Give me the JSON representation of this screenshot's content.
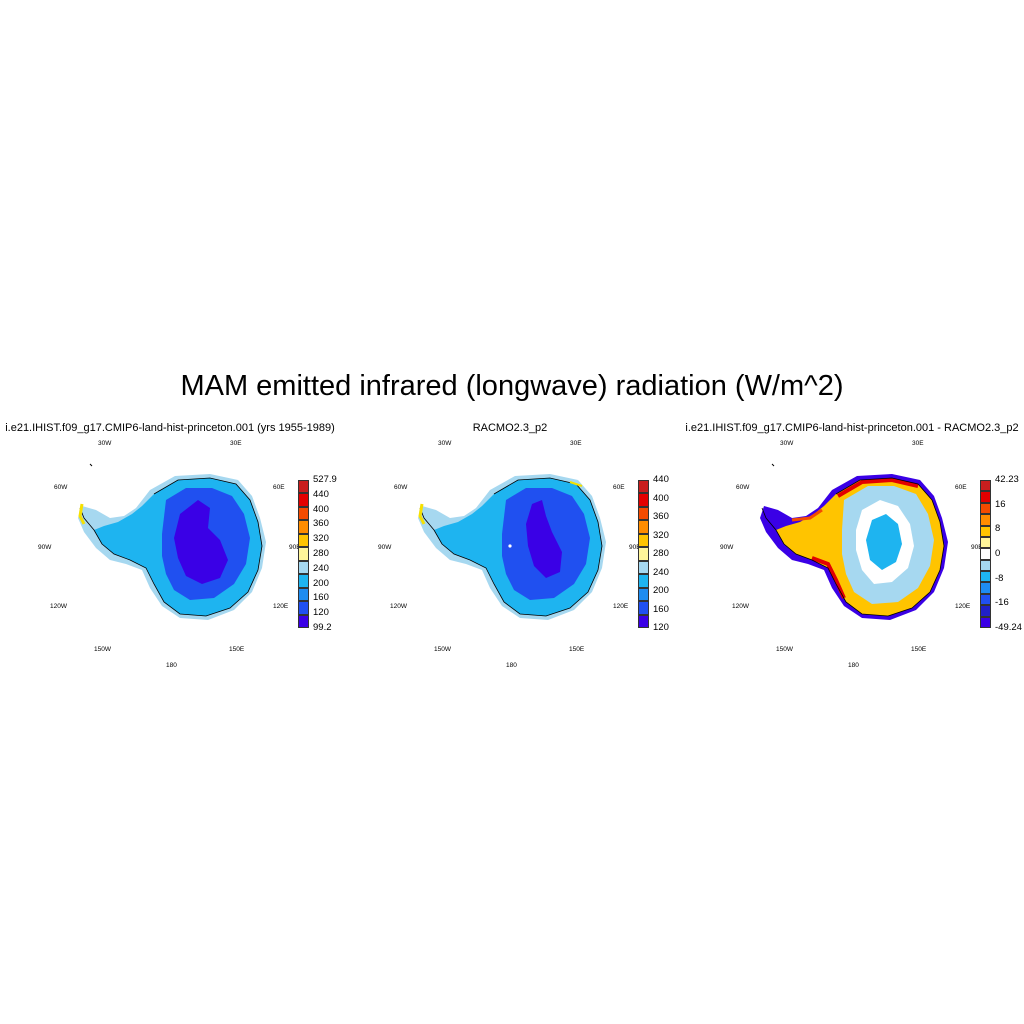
{
  "title": "MAM emitted infrared (longwave) radiation (W/m^2)",
  "panels": [
    {
      "title": "i.e21.IHIST.f09_g17.CMIP6-land-hist-princeton.001 (yrs 1955-1989)",
      "lon_labels": [
        "30W",
        "30E",
        "60W",
        "60E",
        "90W",
        "90E",
        "120W",
        "120E",
        "150W",
        "150E",
        "180"
      ],
      "colorbar_labels": [
        "527.9",
        "440",
        "400",
        "360",
        "320",
        "280",
        "240",
        "200",
        "160",
        "120",
        "99.2"
      ],
      "colorbar_colors": [
        "#c81e1e",
        "#e30000",
        "#f54b00",
        "#ff8c00",
        "#ffc400",
        "#fff59a",
        "#a6d8f0",
        "#1eb4f0",
        "#1e8cf0",
        "#2050f0",
        "#3a00e6"
      ]
    },
    {
      "title": "RACMO2.3_p2",
      "lon_labels": [
        "30W",
        "30E",
        "60W",
        "60E",
        "90W",
        "90E",
        "120W",
        "120E",
        "150W",
        "150E",
        "180"
      ],
      "colorbar_labels": [
        "440",
        "400",
        "360",
        "320",
        "280",
        "240",
        "200",
        "160",
        "120"
      ],
      "colorbar_colors": [
        "#c81e1e",
        "#e30000",
        "#f54b00",
        "#ff8c00",
        "#ffc400",
        "#fff59a",
        "#a6d8f0",
        "#1eb4f0",
        "#1e8cf0",
        "#2050f0",
        "#3a00e6"
      ]
    },
    {
      "title": "i.e21.IHIST.f09_g17.CMIP6-land-hist-princeton.001 - RACMO2.3_p2",
      "lon_labels": [
        "30W",
        "30E",
        "60W",
        "60E",
        "90W",
        "90E",
        "120W",
        "120E",
        "150W",
        "150E",
        "180"
      ],
      "colorbar_labels": [
        "42.23",
        "16",
        "8",
        "0",
        "-8",
        "-16",
        "-49.24"
      ],
      "colorbar_colors": [
        "#c81e1e",
        "#e30000",
        "#f54b00",
        "#ff8c00",
        "#ffc400",
        "#fff59a",
        "#ffffff",
        "#a6d8f0",
        "#1eb4f0",
        "#1e8cf0",
        "#2050f0",
        "#2020c8",
        "#3a00e6"
      ]
    }
  ]
}
